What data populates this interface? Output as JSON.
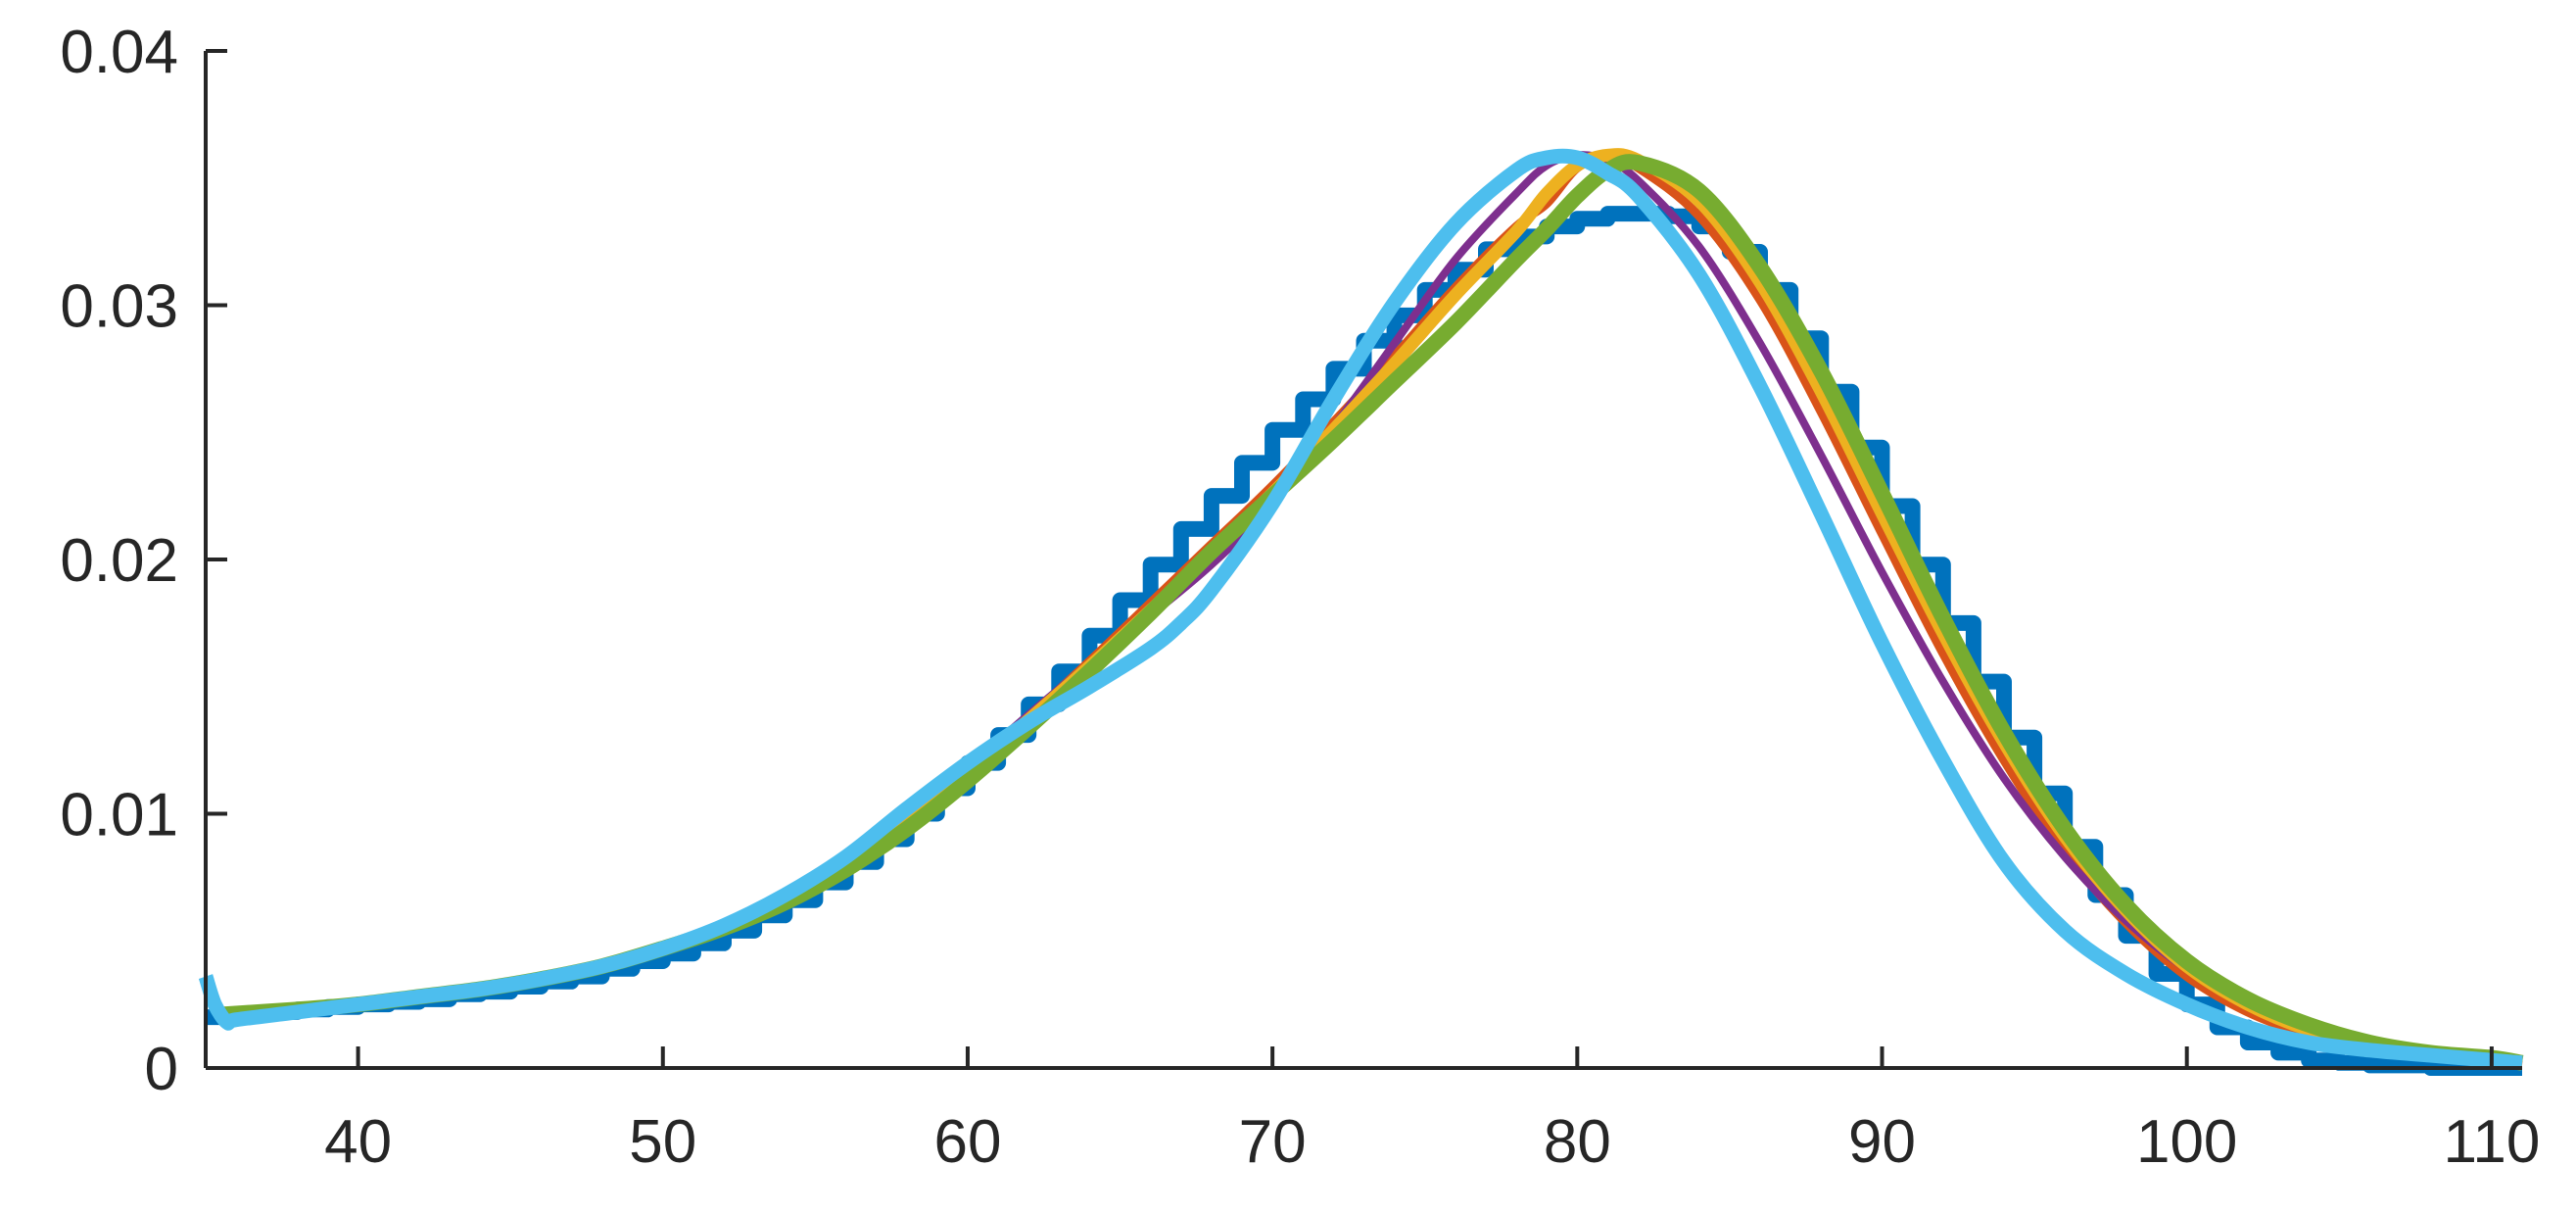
{
  "chart_data": {
    "type": "line",
    "title": "",
    "xlabel": "",
    "ylabel": "",
    "xlim": [
      35,
      111
    ],
    "ylim": [
      0,
      0.04
    ],
    "xticks": [
      40,
      50,
      60,
      70,
      80,
      90,
      100,
      110
    ],
    "xtick_labels": [
      "40",
      "50",
      "60",
      "70",
      "80",
      "90",
      "100",
      "110"
    ],
    "yticks": [
      0,
      0.01,
      0.02,
      0.03,
      0.04
    ],
    "ytick_labels": [
      "0",
      "0.01",
      "0.02",
      "0.03",
      "0.04"
    ],
    "grid": false,
    "legend": false,
    "series": [
      {
        "style": "step",
        "color": "#0072BD",
        "x": [
          35,
          36,
          37,
          38,
          39,
          40,
          41,
          42,
          43,
          44,
          45,
          46,
          47,
          48,
          49,
          50,
          51,
          52,
          53,
          54,
          55,
          56,
          57,
          58,
          59,
          60,
          61,
          62,
          63,
          64,
          65,
          66,
          67,
          68,
          69,
          70,
          71,
          72,
          73,
          74,
          75,
          76,
          77,
          78,
          79,
          80,
          81,
          82,
          83,
          84,
          85,
          86,
          87,
          88,
          89,
          90,
          91,
          92,
          93,
          94,
          95,
          96,
          97,
          98,
          99,
          100,
          101,
          102,
          103,
          104,
          105,
          106,
          107,
          108,
          109,
          110,
          111
        ],
        "y": [
          0.002,
          0.0021,
          0.0022,
          0.0023,
          0.0024,
          0.0025,
          0.0026,
          0.0027,
          0.0029,
          0.003,
          0.0032,
          0.0034,
          0.0036,
          0.0039,
          0.0042,
          0.0045,
          0.0049,
          0.0054,
          0.006,
          0.0066,
          0.0073,
          0.0081,
          0.009,
          0.01,
          0.011,
          0.012,
          0.0131,
          0.0143,
          0.0156,
          0.017,
          0.0184,
          0.0198,
          0.0212,
          0.0225,
          0.0238,
          0.0251,
          0.0263,
          0.0275,
          0.0286,
          0.0296,
          0.0306,
          0.0314,
          0.0322,
          0.0327,
          0.0331,
          0.0334,
          0.0336,
          0.0336,
          0.0335,
          0.0331,
          0.0321,
          0.0306,
          0.0287,
          0.0266,
          0.0244,
          0.0221,
          0.0198,
          0.0175,
          0.0152,
          0.013,
          0.0108,
          0.0087,
          0.0068,
          0.0052,
          0.0037,
          0.0025,
          0.0016,
          0.001,
          0.0006,
          0.0003,
          0.0002,
          0.0001,
          0.0001,
          0.0,
          0.0,
          0.0,
          0.0
        ]
      },
      {
        "style": "line",
        "color": "#D95319",
        "x": [
          35.5,
          38,
          40,
          42,
          44,
          46,
          48,
          50,
          52,
          54,
          56,
          58,
          60,
          62,
          64,
          66,
          68,
          70,
          72,
          74,
          76,
          78,
          79,
          80,
          81,
          82,
          84,
          86,
          88,
          90,
          92,
          94,
          96,
          98,
          100,
          102,
          104,
          106,
          108,
          110,
          111
        ],
        "y": [
          0.0021,
          0.0023,
          0.0025,
          0.0028,
          0.0031,
          0.0035,
          0.004,
          0.0047,
          0.0056,
          0.0067,
          0.0081,
          0.0098,
          0.0117,
          0.0138,
          0.016,
          0.0183,
          0.0206,
          0.0229,
          0.0254,
          0.028,
          0.0307,
          0.0331,
          0.034,
          0.0354,
          0.0358,
          0.0354,
          0.0335,
          0.0302,
          0.0258,
          0.021,
          0.0163,
          0.0121,
          0.0085,
          0.0057,
          0.0036,
          0.0022,
          0.0013,
          0.0007,
          0.0004,
          0.0002,
          0.0001
        ]
      },
      {
        "style": "line",
        "color": "#7E2F8E",
        "x": [
          35.5,
          38,
          40,
          42,
          44,
          46,
          48,
          50,
          52,
          54,
          56,
          58,
          60,
          62,
          64,
          66,
          68,
          70,
          72,
          74,
          76,
          78,
          79,
          80,
          81,
          82,
          84,
          86,
          88,
          90,
          92,
          94,
          96,
          98,
          100,
          102,
          104,
          106,
          108,
          110,
          111
        ],
        "y": [
          0.0021,
          0.0023,
          0.0025,
          0.0028,
          0.0031,
          0.0035,
          0.004,
          0.0047,
          0.0056,
          0.0066,
          0.0079,
          0.0097,
          0.0118,
          0.0139,
          0.0159,
          0.0178,
          0.0198,
          0.0222,
          0.0252,
          0.0285,
          0.0318,
          0.0344,
          0.0355,
          0.0359,
          0.0357,
          0.0349,
          0.0323,
          0.0285,
          0.0241,
          0.0195,
          0.0152,
          0.0114,
          0.0083,
          0.0058,
          0.0039,
          0.0026,
          0.0017,
          0.0011,
          0.0007,
          0.0004,
          0.0003
        ]
      },
      {
        "style": "line",
        "color": "#EDB120",
        "x": [
          35.5,
          38,
          40,
          42,
          44,
          46,
          48,
          50,
          52,
          54,
          56,
          58,
          60,
          62,
          64,
          66,
          68,
          70,
          72,
          74,
          76,
          78,
          79,
          80,
          81,
          82,
          84,
          86,
          88,
          90,
          92,
          94,
          96,
          98,
          100,
          102,
          104,
          106,
          108,
          110,
          111
        ],
        "y": [
          0.0021,
          0.0023,
          0.0025,
          0.0028,
          0.0031,
          0.0035,
          0.004,
          0.0047,
          0.0056,
          0.0067,
          0.008,
          0.0097,
          0.0116,
          0.0137,
          0.0158,
          0.018,
          0.0203,
          0.0226,
          0.0251,
          0.0277,
          0.0304,
          0.0329,
          0.0344,
          0.0355,
          0.0359,
          0.0357,
          0.0341,
          0.0309,
          0.0266,
          0.0218,
          0.0171,
          0.0128,
          0.0091,
          0.0062,
          0.004,
          0.0025,
          0.0015,
          0.0009,
          0.0005,
          0.0003,
          0.0002
        ]
      },
      {
        "style": "line",
        "color": "#77AC30",
        "x": [
          35.5,
          38,
          40,
          42,
          44,
          46,
          48,
          50,
          52,
          54,
          56,
          58,
          60,
          62,
          64,
          66,
          68,
          70,
          72,
          74,
          76,
          78,
          79,
          80,
          81,
          82,
          84,
          86,
          88,
          90,
          92,
          94,
          96,
          98,
          100,
          102,
          104,
          106,
          108,
          110,
          111
        ],
        "y": [
          0.0021,
          0.0023,
          0.0025,
          0.0028,
          0.0031,
          0.0035,
          0.004,
          0.0047,
          0.0055,
          0.0065,
          0.0078,
          0.0094,
          0.0113,
          0.0134,
          0.0156,
          0.0179,
          0.0203,
          0.0225,
          0.0247,
          0.027,
          0.0293,
          0.0318,
          0.033,
          0.0343,
          0.0353,
          0.0356,
          0.0345,
          0.0315,
          0.0274,
          0.0226,
          0.0177,
          0.0132,
          0.0094,
          0.0064,
          0.0042,
          0.0027,
          0.0017,
          0.001,
          0.0006,
          0.0004,
          0.0002
        ]
      },
      {
        "style": "line",
        "color": "#4DBEEE",
        "x": [
          35,
          35.3,
          35.7,
          36,
          38,
          40,
          42,
          44,
          46,
          48,
          50,
          52,
          54,
          56,
          58,
          60,
          62,
          64,
          66,
          67,
          68,
          70,
          72,
          74,
          76,
          78,
          79,
          80,
          81,
          82,
          84,
          86,
          88,
          90,
          92,
          94,
          96,
          98,
          100,
          102,
          104,
          106,
          108,
          110,
          111
        ],
        "y": [
          0.0036,
          0.0025,
          0.0018,
          0.0019,
          0.0022,
          0.0025,
          0.0028,
          0.0031,
          0.0035,
          0.004,
          0.0047,
          0.0056,
          0.0068,
          0.0083,
          0.0102,
          0.012,
          0.0136,
          0.015,
          0.0165,
          0.0175,
          0.0188,
          0.0222,
          0.0263,
          0.0301,
          0.0332,
          0.0353,
          0.0358,
          0.0358,
          0.0352,
          0.0343,
          0.0312,
          0.0268,
          0.0218,
          0.0167,
          0.0121,
          0.0081,
          0.0054,
          0.0037,
          0.0025,
          0.0016,
          0.001,
          0.0007,
          0.0005,
          0.0003,
          0.0002
        ]
      }
    ]
  }
}
